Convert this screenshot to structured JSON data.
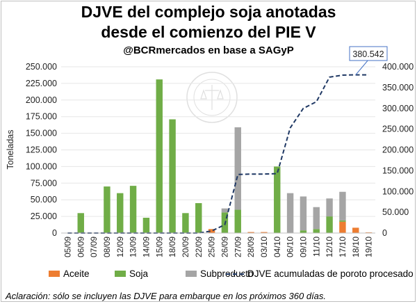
{
  "title_line1": "DJVE del complejo soja anotadas",
  "title_line2": "desde el comienzo del PIE V",
  "subtitle": "@BCRmercados en base a SAGyP",
  "footnote": "Aclaración: sólo se incluyen las DJVE para embarque en los próximos 360 días.",
  "watermark_text": "BOLSA DE COMERCIO DE ROSARIO",
  "colors": {
    "aceite": "#ed7d31",
    "soja": "#70ad47",
    "subproducto": "#a5a5a5",
    "line": "#1f3864"
  },
  "chart_data": {
    "type": "bar",
    "stacked": true,
    "ylabel": "Toneladas",
    "ylim": [
      0,
      250000
    ],
    "y2lim": [
      0,
      400000
    ],
    "yticks": [
      "0",
      "25.000",
      "50.000",
      "75.000",
      "100.000",
      "125.000",
      "150.000",
      "175.000",
      "200.000",
      "225.000",
      "250.000"
    ],
    "y2ticks": [
      "0",
      "50.000",
      "100.000",
      "150.000",
      "200.000",
      "250.000",
      "300.000",
      "350.000",
      "400.000"
    ],
    "categories": [
      "05/09",
      "06/09",
      "07/09",
      "08/09",
      "12/09",
      "13/09",
      "14/09",
      "15/09",
      "18/09",
      "20/09",
      "22/09",
      "25/09",
      "26/09",
      "27/09",
      "28/09",
      "03/10",
      "04/10",
      "06/10",
      "09/10",
      "11/10",
      "12/10",
      "17/10",
      "18/10",
      "19/10"
    ],
    "series": [
      {
        "name": "Aceite",
        "color": "#ed7d31",
        "values": [
          0,
          0,
          0,
          0,
          0,
          0,
          0,
          0,
          0,
          0,
          0,
          6000,
          0,
          0,
          1500,
          1500,
          0,
          0,
          0,
          0,
          0,
          17000,
          8000,
          1000
        ]
      },
      {
        "name": "Soja",
        "color": "#70ad47",
        "values": [
          0,
          30000,
          0,
          70000,
          60000,
          71000,
          23000,
          231000,
          171000,
          30000,
          45000,
          0,
          31000,
          35000,
          0,
          0,
          100000,
          0,
          4000,
          6000,
          25000,
          2000,
          0,
          0
        ]
      },
      {
        "name": "Subproducto",
        "color": "#a5a5a5",
        "values": [
          0,
          0,
          0,
          0,
          0,
          0,
          0,
          0,
          0,
          0,
          0,
          0,
          6000,
          124000,
          0,
          0,
          0,
          60000,
          51000,
          33000,
          27000,
          43000,
          0,
          0
        ]
      }
    ],
    "line": {
      "name": "DJVE acumuladas de poroto procesado",
      "axis": "secondary",
      "values": [
        0,
        0,
        0,
        0,
        0,
        0,
        0,
        0,
        0,
        0,
        0,
        5000,
        20000,
        141000,
        142000,
        142000,
        143000,
        253000,
        300000,
        316000,
        375000,
        380000,
        380542,
        380542
      ]
    },
    "annotation": "380.542"
  }
}
